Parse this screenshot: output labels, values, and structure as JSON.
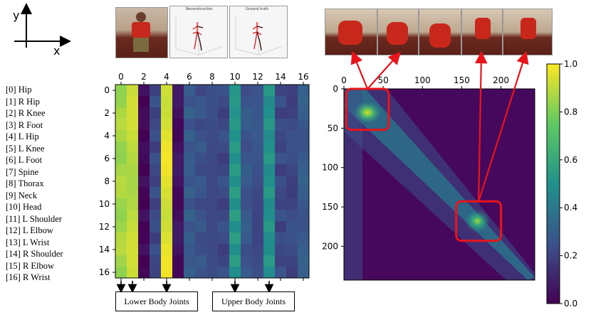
{
  "axis_indicator": {
    "y_label": "y",
    "x_label": "x"
  },
  "joints": [
    "[0] Hip",
    "[1] R Hip",
    "[2] R Knee",
    "[3] R Foot",
    "[4] L Hip",
    "[5] L Knee",
    "[6] L Foot",
    "[7] Spine",
    "[8] Thorax",
    "[9] Neck",
    "[10] Head",
    "[11] L Shoulder",
    "[12] L Elbow",
    "[13] L Wrist",
    "[14] R Shoulder",
    "[15] R Elbow",
    "[16] R Wrist"
  ],
  "panels": {
    "reconstruction_title": "Reconstruction",
    "ground_truth_title": "Ground truth"
  },
  "group_labels": {
    "lower": "Lower Body Joints",
    "upper": "Upper Body Joints"
  },
  "colors": {
    "highlight": "#e8141b",
    "colormap": [
      "#440154",
      "#3b528b",
      "#21918c",
      "#5ec962",
      "#fde725"
    ]
  },
  "chart_data": [
    {
      "type": "heatmap",
      "title": "",
      "x_ticks": [
        0,
        2,
        4,
        6,
        8,
        10,
        12,
        14,
        16
      ],
      "y_ticks": [
        0,
        2,
        4,
        6,
        8,
        10,
        12,
        14,
        16
      ],
      "xlim": [
        -0.5,
        16.5
      ],
      "ylim": [
        16.5,
        -0.5
      ],
      "n_rows": 17,
      "n_cols": 17,
      "column_base_values": [
        0.86,
        0.9,
        0.02,
        0.22,
        0.95,
        0.05,
        0.28,
        0.25,
        0.25,
        0.22,
        0.52,
        0.27,
        0.24,
        0.5,
        0.22,
        0.22,
        0.28
      ],
      "arrow_columns": [
        0,
        1,
        4,
        10,
        13
      ]
    },
    {
      "type": "heatmap",
      "title": "",
      "x_ticks": [
        0,
        50,
        100,
        150,
        200
      ],
      "y_ticks": [
        0,
        50,
        100,
        150,
        200
      ],
      "xlim": [
        0,
        243
      ],
      "ylim": [
        243,
        0
      ],
      "highlight_regions": [
        {
          "x": [
            3,
            57
          ],
          "y": [
            0,
            52
          ]
        },
        {
          "x": [
            143,
            200
          ],
          "y": [
            143,
            193
          ]
        }
      ],
      "colorbar": {
        "ticks": [
          0.0,
          0.2,
          0.4,
          0.6,
          0.8,
          1.0
        ],
        "range": [
          0,
          1
        ]
      }
    }
  ]
}
